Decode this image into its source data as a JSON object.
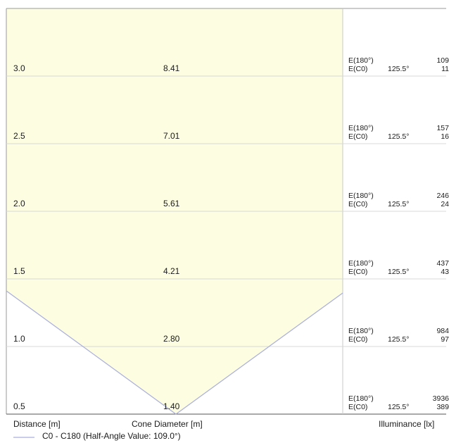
{
  "chart_data": {
    "type": "table",
    "title": "",
    "xlabel": "Distance [m]",
    "column_labels": {
      "distance": "Distance [m]",
      "diameter": "Cone Diameter [m]",
      "illuminance": "Illuminance [lx]"
    },
    "legend": "C0 - C180 (Half-Angle Value: 109.0°)",
    "half_angle_deg": 109.0,
    "cone_line_color": "#a9aede",
    "cone_fill_color": "#fdfde1",
    "rows": [
      {
        "distance": "3.0",
        "diameter": "8.41",
        "e180_label": "E(180°)",
        "e0_label": "E(C0)",
        "angle": "125.5°",
        "e180_value": "109",
        "e0_value": "11"
      },
      {
        "distance": "2.5",
        "diameter": "7.01",
        "e180_label": "E(180°)",
        "e0_label": "E(C0)",
        "angle": "125.5°",
        "e180_value": "157",
        "e0_value": "16"
      },
      {
        "distance": "2.0",
        "diameter": "5.61",
        "e180_label": "E(180°)",
        "e0_label": "E(C0)",
        "angle": "125.5°",
        "e180_value": "246",
        "e0_value": "24"
      },
      {
        "distance": "1.5",
        "diameter": "4.21",
        "e180_label": "E(180°)",
        "e0_label": "E(C0)",
        "angle": "125.5°",
        "e180_value": "437",
        "e0_value": "43"
      },
      {
        "distance": "1.0",
        "diameter": "2.80",
        "e180_label": "E(180°)",
        "e0_label": "E(C0)",
        "angle": "125.5°",
        "e180_value": "984",
        "e0_value": "97"
      },
      {
        "distance": "0.5",
        "diameter": "1.40",
        "e180_label": "E(180°)",
        "e0_label": "E(C0)",
        "angle": "125.5°",
        "e180_value": "3936",
        "e0_value": "389"
      }
    ]
  }
}
